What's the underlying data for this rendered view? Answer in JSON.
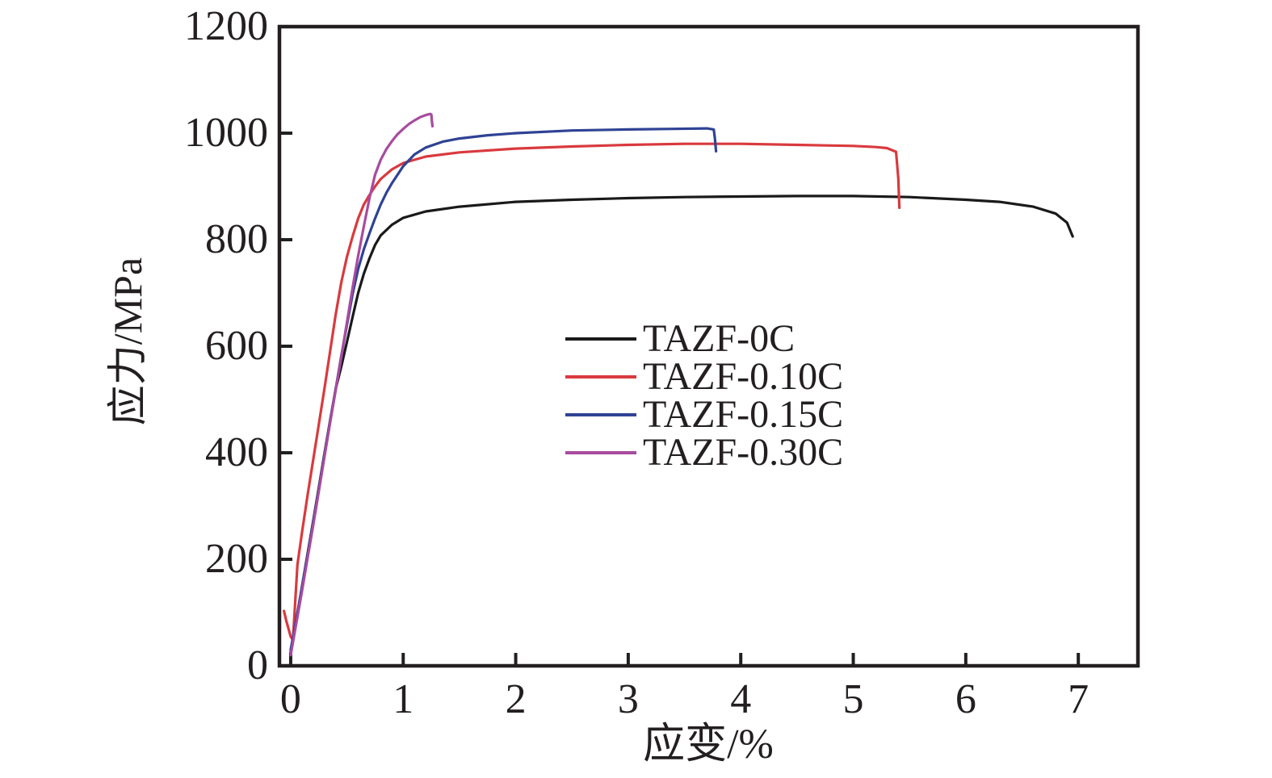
{
  "chart_data": {
    "type": "line",
    "title": "",
    "xlabel": "应变/%",
    "ylabel": "应力/MPa",
    "xlim": [
      -0.1,
      7.53
    ],
    "ylim": [
      0,
      1200
    ],
    "xticks": [
      0,
      1,
      2,
      3,
      4,
      5,
      6,
      7
    ],
    "yticks": [
      0,
      200,
      400,
      600,
      800,
      1000,
      1200
    ],
    "grid": false,
    "legend_position": "inside-center-right",
    "axis_color": "#231f20",
    "series": [
      {
        "name": "TAZF-0C",
        "color": "#1a1a1a",
        "points": [
          [
            0,
            25
          ],
          [
            0.05,
            85
          ],
          [
            0.1,
            148
          ],
          [
            0.15,
            210
          ],
          [
            0.2,
            272
          ],
          [
            0.25,
            335
          ],
          [
            0.3,
            398
          ],
          [
            0.35,
            460
          ],
          [
            0.4,
            520
          ],
          [
            0.45,
            562
          ],
          [
            0.5,
            608
          ],
          [
            0.55,
            655
          ],
          [
            0.6,
            700
          ],
          [
            0.65,
            736
          ],
          [
            0.7,
            765
          ],
          [
            0.75,
            790
          ],
          [
            0.8,
            808
          ],
          [
            0.9,
            828
          ],
          [
            1.0,
            841
          ],
          [
            1.2,
            853
          ],
          [
            1.5,
            862
          ],
          [
            2.0,
            871
          ],
          [
            2.5,
            875
          ],
          [
            3.0,
            878
          ],
          [
            3.5,
            880
          ],
          [
            4.0,
            881
          ],
          [
            4.5,
            882
          ],
          [
            5.0,
            882
          ],
          [
            5.5,
            880
          ],
          [
            6.0,
            875
          ],
          [
            6.3,
            871
          ],
          [
            6.6,
            862
          ],
          [
            6.8,
            849
          ],
          [
            6.9,
            832
          ],
          [
            6.95,
            806
          ]
        ]
      },
      {
        "name": "TAZF-0.10C",
        "color": "#d93a3e",
        "points": [
          [
            -0.06,
            103
          ],
          [
            -0.04,
            85
          ],
          [
            0.0,
            55
          ],
          [
            0.02,
            48
          ],
          [
            0.06,
            190
          ],
          [
            0.1,
            250
          ],
          [
            0.15,
            320
          ],
          [
            0.21,
            400
          ],
          [
            0.3,
            520
          ],
          [
            0.4,
            660
          ],
          [
            0.45,
            720
          ],
          [
            0.5,
            768
          ],
          [
            0.55,
            806
          ],
          [
            0.6,
            840
          ],
          [
            0.65,
            866
          ],
          [
            0.7,
            884
          ],
          [
            0.75,
            900
          ],
          [
            0.8,
            914
          ],
          [
            0.9,
            932
          ],
          [
            1.0,
            944
          ],
          [
            1.2,
            956
          ],
          [
            1.5,
            964
          ],
          [
            2.0,
            971
          ],
          [
            2.5,
            975
          ],
          [
            3.0,
            978
          ],
          [
            3.5,
            980
          ],
          [
            4.0,
            980
          ],
          [
            4.5,
            978
          ],
          [
            5.0,
            976
          ],
          [
            5.2,
            974
          ],
          [
            5.3,
            972
          ],
          [
            5.38,
            965
          ],
          [
            5.4,
            915
          ],
          [
            5.41,
            860
          ]
        ]
      },
      {
        "name": "TAZF-0.15C",
        "color": "#2f4394",
        "points": [
          [
            0,
            30
          ],
          [
            0.05,
            88
          ],
          [
            0.1,
            148
          ],
          [
            0.15,
            208
          ],
          [
            0.2,
            270
          ],
          [
            0.25,
            332
          ],
          [
            0.3,
            395
          ],
          [
            0.35,
            458
          ],
          [
            0.4,
            520
          ],
          [
            0.45,
            582
          ],
          [
            0.5,
            640
          ],
          [
            0.55,
            698
          ],
          [
            0.6,
            745
          ],
          [
            0.65,
            782
          ],
          [
            0.7,
            812
          ],
          [
            0.75,
            840
          ],
          [
            0.8,
            866
          ],
          [
            0.85,
            888
          ],
          [
            0.9,
            906
          ],
          [
            1.0,
            938
          ],
          [
            1.1,
            960
          ],
          [
            1.2,
            973
          ],
          [
            1.35,
            984
          ],
          [
            1.5,
            990
          ],
          [
            1.75,
            996
          ],
          [
            2.0,
            1000
          ],
          [
            2.5,
            1005
          ],
          [
            3.0,
            1007
          ],
          [
            3.4,
            1008
          ],
          [
            3.7,
            1009
          ],
          [
            3.76,
            1007
          ],
          [
            3.77,
            990
          ],
          [
            3.78,
            966
          ]
        ]
      },
      {
        "name": "TAZF-0.30C",
        "color": "#a84b9f",
        "points": [
          [
            0,
            20
          ],
          [
            0.05,
            80
          ],
          [
            0.1,
            140
          ],
          [
            0.15,
            202
          ],
          [
            0.2,
            264
          ],
          [
            0.25,
            328
          ],
          [
            0.3,
            392
          ],
          [
            0.35,
            456
          ],
          [
            0.4,
            518
          ],
          [
            0.45,
            580
          ],
          [
            0.5,
            645
          ],
          [
            0.55,
            710
          ],
          [
            0.6,
            770
          ],
          [
            0.65,
            825
          ],
          [
            0.7,
            878
          ],
          [
            0.75,
            922
          ],
          [
            0.8,
            950
          ],
          [
            0.85,
            970
          ],
          [
            0.9,
            985
          ],
          [
            0.95,
            998
          ],
          [
            1.0,
            1008
          ],
          [
            1.05,
            1017
          ],
          [
            1.1,
            1024
          ],
          [
            1.15,
            1030
          ],
          [
            1.2,
            1034
          ],
          [
            1.24,
            1036
          ],
          [
            1.25,
            1035
          ],
          [
            1.255,
            1022
          ],
          [
            1.26,
            1013
          ]
        ]
      }
    ]
  }
}
